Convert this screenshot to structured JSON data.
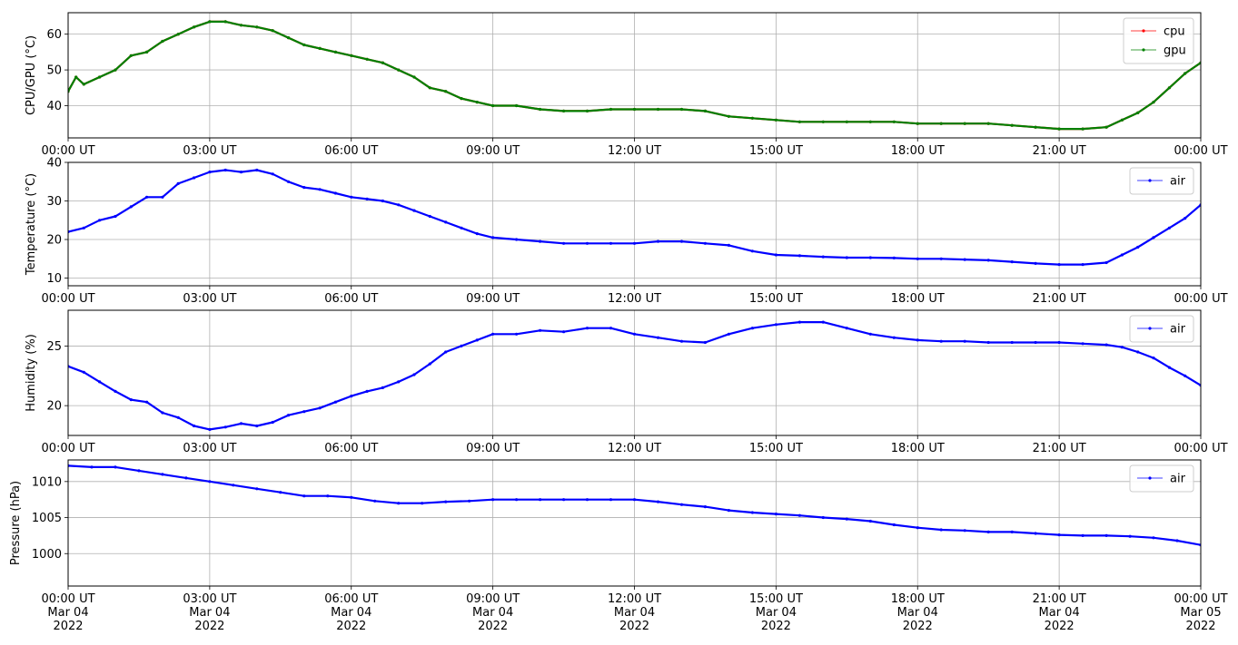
{
  "chart_data": [
    {
      "type": "line",
      "ylabel": "CPU/GPU (°C)",
      "ylim": [
        31,
        66
      ],
      "yticks": [
        40,
        50,
        60
      ],
      "xlim": [
        "2022-03-04T00:00",
        "2022-03-05T00:00"
      ],
      "xtick_labels": [
        "00:00 UT",
        "03:00 UT",
        "06:00 UT",
        "09:00 UT",
        "12:00 UT",
        "15:00 UT",
        "18:00 UT",
        "21:00 UT",
        "00:00 UT"
      ],
      "grid": true,
      "legend": "top-right",
      "series": [
        {
          "name": "cpu",
          "color": "#ff0000",
          "x": [
            "00:00",
            "00:10",
            "00:20",
            "00:40",
            "01:00",
            "01:20",
            "01:40",
            "02:00",
            "02:20",
            "02:40",
            "03:00",
            "03:20",
            "03:40",
            "04:00",
            "04:20",
            "04:40",
            "05:00",
            "05:20",
            "05:40",
            "06:00",
            "06:20",
            "06:40",
            "07:00",
            "07:20",
            "07:40",
            "08:00",
            "08:20",
            "08:40",
            "09:00",
            "09:30",
            "10:00",
            "10:30",
            "11:00",
            "11:30",
            "12:00",
            "12:30",
            "13:00",
            "13:30",
            "14:00",
            "14:30",
            "15:00",
            "15:30",
            "16:00",
            "16:30",
            "17:00",
            "17:30",
            "18:00",
            "18:30",
            "19:00",
            "19:30",
            "20:00",
            "20:30",
            "21:00",
            "21:30",
            "22:00",
            "22:20",
            "22:40",
            "23:00",
            "23:20",
            "23:40",
            "24:00"
          ],
          "values": [
            44,
            48,
            46,
            48,
            50,
            54,
            55,
            58,
            60,
            62,
            63.5,
            63.5,
            62.5,
            62,
            61,
            59,
            57,
            56,
            55,
            54,
            53,
            52,
            50,
            48,
            45,
            44,
            42,
            41,
            40,
            40,
            39,
            38.5,
            38.5,
            39,
            39,
            39,
            39,
            38.5,
            37,
            36.5,
            36,
            35.5,
            35.5,
            35.5,
            35.5,
            35.5,
            35,
            35,
            35,
            35,
            34.5,
            34,
            33.5,
            33.5,
            34,
            36,
            38,
            41,
            45,
            49,
            52
          ]
        },
        {
          "name": "gpu",
          "color": "#008000",
          "x": [
            "00:00",
            "00:10",
            "00:20",
            "00:40",
            "01:00",
            "01:20",
            "01:40",
            "02:00",
            "02:20",
            "02:40",
            "03:00",
            "03:20",
            "03:40",
            "04:00",
            "04:20",
            "04:40",
            "05:00",
            "05:20",
            "05:40",
            "06:00",
            "06:20",
            "06:40",
            "07:00",
            "07:20",
            "07:40",
            "08:00",
            "08:20",
            "08:40",
            "09:00",
            "09:30",
            "10:00",
            "10:30",
            "11:00",
            "11:30",
            "12:00",
            "12:30",
            "13:00",
            "13:30",
            "14:00",
            "14:30",
            "15:00",
            "15:30",
            "16:00",
            "16:30",
            "17:00",
            "17:30",
            "18:00",
            "18:30",
            "19:00",
            "19:30",
            "20:00",
            "20:30",
            "21:00",
            "21:30",
            "22:00",
            "22:20",
            "22:40",
            "23:00",
            "23:20",
            "23:40",
            "24:00"
          ],
          "values": [
            44,
            48,
            46,
            48,
            50,
            54,
            55,
            58,
            60,
            62,
            63.5,
            63.5,
            62.5,
            62,
            61,
            59,
            57,
            56,
            55,
            54,
            53,
            52,
            50,
            48,
            45,
            44,
            42,
            41,
            40,
            40,
            39,
            38.5,
            38.5,
            39,
            39,
            39,
            39,
            38.5,
            37,
            36.5,
            36,
            35.5,
            35.5,
            35.5,
            35.5,
            35.5,
            35,
            35,
            35,
            35,
            34.5,
            34,
            33.5,
            33.5,
            34,
            36,
            38,
            41,
            45,
            49,
            52
          ]
        }
      ]
    },
    {
      "type": "line",
      "ylabel": "Temperature (°C)",
      "ylim": [
        8,
        40
      ],
      "yticks": [
        10,
        20,
        30,
        40
      ],
      "xlim": [
        "2022-03-04T00:00",
        "2022-03-05T00:00"
      ],
      "xtick_labels": [
        "00:00 UT",
        "03:00 UT",
        "06:00 UT",
        "09:00 UT",
        "12:00 UT",
        "15:00 UT",
        "18:00 UT",
        "21:00 UT",
        "00:00 UT"
      ],
      "grid": true,
      "legend": "top-right",
      "series": [
        {
          "name": "air",
          "color": "#0000ff",
          "x": [
            "00:00",
            "00:20",
            "00:40",
            "01:00",
            "01:20",
            "01:40",
            "02:00",
            "02:20",
            "02:40",
            "03:00",
            "03:20",
            "03:40",
            "04:00",
            "04:20",
            "04:40",
            "05:00",
            "05:20",
            "05:40",
            "06:00",
            "06:20",
            "06:40",
            "07:00",
            "07:20",
            "07:40",
            "08:00",
            "08:20",
            "08:40",
            "09:00",
            "09:30",
            "10:00",
            "10:30",
            "11:00",
            "11:30",
            "12:00",
            "12:30",
            "13:00",
            "13:30",
            "14:00",
            "14:30",
            "15:00",
            "15:30",
            "16:00",
            "16:30",
            "17:00",
            "17:30",
            "18:00",
            "18:30",
            "19:00",
            "19:30",
            "20:00",
            "20:30",
            "21:00",
            "21:30",
            "22:00",
            "22:20",
            "22:40",
            "23:00",
            "23:20",
            "23:40",
            "24:00"
          ],
          "values": [
            22,
            23,
            25,
            26,
            28.5,
            31,
            31,
            34.5,
            36,
            37.5,
            38,
            37.5,
            38,
            37,
            35,
            33.5,
            33,
            32,
            31,
            30.5,
            30,
            29,
            27.5,
            26,
            24.5,
            23,
            21.5,
            20.5,
            20,
            19.5,
            19,
            19,
            19,
            19,
            19.5,
            19.5,
            19,
            18.5,
            17,
            16,
            15.8,
            15.5,
            15.3,
            15.3,
            15.2,
            15,
            15,
            14.8,
            14.6,
            14.2,
            13.8,
            13.5,
            13.5,
            14,
            16,
            18,
            20.5,
            23,
            25.5,
            29
          ]
        }
      ]
    },
    {
      "type": "line",
      "ylabel": "Humidity (%)",
      "ylim": [
        17.5,
        28
      ],
      "yticks": [
        20,
        25
      ],
      "xlim": [
        "2022-03-04T00:00",
        "2022-03-05T00:00"
      ],
      "xtick_labels": [
        "00:00 UT",
        "03:00 UT",
        "06:00 UT",
        "09:00 UT",
        "12:00 UT",
        "15:00 UT",
        "18:00 UT",
        "21:00 UT",
        "00:00 UT"
      ],
      "grid": true,
      "legend": "top-right",
      "series": [
        {
          "name": "air",
          "color": "#0000ff",
          "x": [
            "00:00",
            "00:20",
            "00:40",
            "01:00",
            "01:20",
            "01:40",
            "02:00",
            "02:20",
            "02:40",
            "03:00",
            "03:20",
            "03:40",
            "04:00",
            "04:20",
            "04:40",
            "05:00",
            "05:20",
            "05:40",
            "06:00",
            "06:20",
            "06:40",
            "07:00",
            "07:20",
            "07:40",
            "08:00",
            "08:20",
            "08:40",
            "09:00",
            "09:30",
            "10:00",
            "10:30",
            "11:00",
            "11:30",
            "12:00",
            "12:30",
            "13:00",
            "13:30",
            "14:00",
            "14:30",
            "15:00",
            "15:30",
            "16:00",
            "16:30",
            "17:00",
            "17:30",
            "18:00",
            "18:30",
            "19:00",
            "19:30",
            "20:00",
            "20:30",
            "21:00",
            "21:30",
            "22:00",
            "22:20",
            "22:40",
            "23:00",
            "23:20",
            "23:40",
            "24:00"
          ],
          "values": [
            23.3,
            22.8,
            22,
            21.2,
            20.5,
            20.3,
            19.4,
            19,
            18.3,
            18,
            18.2,
            18.5,
            18.3,
            18.6,
            19.2,
            19.5,
            19.8,
            20.3,
            20.8,
            21.2,
            21.5,
            22,
            22.6,
            23.5,
            24.5,
            25,
            25.5,
            26,
            26,
            26.3,
            26.2,
            26.5,
            26.5,
            26,
            25.7,
            25.4,
            25.3,
            26,
            26.5,
            26.8,
            27,
            27,
            26.5,
            26,
            25.7,
            25.5,
            25.4,
            25.4,
            25.3,
            25.3,
            25.3,
            25.3,
            25.2,
            25.1,
            24.9,
            24.5,
            24,
            23.2,
            22.5,
            21.7
          ]
        }
      ]
    },
    {
      "type": "line",
      "ylabel": "Pressure (hPa)",
      "ylim": [
        995.5,
        1013
      ],
      "yticks": [
        1000,
        1005,
        1010
      ],
      "xlim": [
        "2022-03-04T00:00",
        "2022-03-05T00:00"
      ],
      "xtick_labels": [
        "00:00 UT\nMar 04\n2022",
        "03:00 UT\nMar 04\n2022",
        "06:00 UT\nMar 04\n2022",
        "09:00 UT\nMar 04\n2022",
        "12:00 UT\nMar 04\n2022",
        "15:00 UT\nMar 04\n2022",
        "18:00 UT\nMar 04\n2022",
        "21:00 UT\nMar 04\n2022",
        "00:00 UT\nMar 05\n2022"
      ],
      "grid": true,
      "legend": "top-right",
      "series": [
        {
          "name": "air",
          "color": "#0000ff",
          "x": [
            "00:00",
            "00:30",
            "01:00",
            "01:30",
            "02:00",
            "02:30",
            "03:00",
            "03:30",
            "04:00",
            "04:30",
            "05:00",
            "05:30",
            "06:00",
            "06:30",
            "07:00",
            "07:30",
            "08:00",
            "08:30",
            "09:00",
            "09:30",
            "10:00",
            "10:30",
            "11:00",
            "11:30",
            "12:00",
            "12:30",
            "13:00",
            "13:30",
            "14:00",
            "14:30",
            "15:00",
            "15:30",
            "16:00",
            "16:30",
            "17:00",
            "17:30",
            "18:00",
            "18:30",
            "19:00",
            "19:30",
            "20:00",
            "20:30",
            "21:00",
            "21:30",
            "22:00",
            "22:30",
            "23:00",
            "23:30",
            "24:00"
          ],
          "values": [
            1012.2,
            1012,
            1012,
            1011.5,
            1011,
            1010.5,
            1010,
            1009.5,
            1009,
            1008.5,
            1008,
            1008,
            1007.8,
            1007.3,
            1007,
            1007,
            1007.2,
            1007.3,
            1007.5,
            1007.5,
            1007.5,
            1007.5,
            1007.5,
            1007.5,
            1007.5,
            1007.2,
            1006.8,
            1006.5,
            1006,
            1005.7,
            1005.5,
            1005.3,
            1005,
            1004.8,
            1004.5,
            1004,
            1003.6,
            1003.3,
            1003.2,
            1003,
            1003,
            1002.8,
            1002.6,
            1002.5,
            1002.5,
            1002.4,
            1002.2,
            1001.8,
            1001.2
          ]
        }
      ]
    }
  ]
}
